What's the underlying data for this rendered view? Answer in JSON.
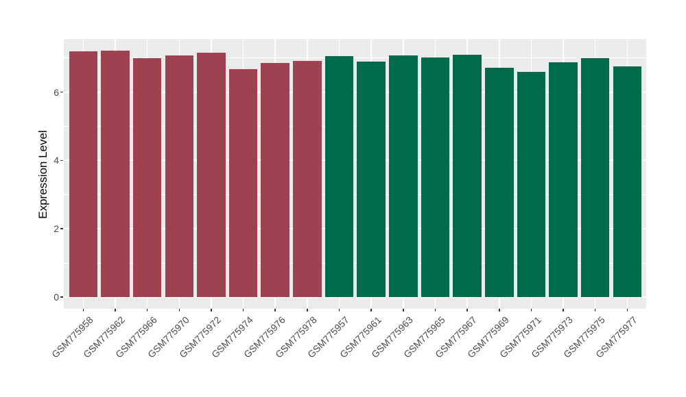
{
  "chart_data": {
    "type": "bar",
    "title": "",
    "xlabel": "",
    "ylabel": "Expression Level",
    "ylim": [
      -0.36,
      7.55
    ],
    "yticks_major": [
      0,
      2,
      4,
      6
    ],
    "yticks_minor": [
      1,
      3,
      5,
      7
    ],
    "grid": "on",
    "legend": "none",
    "panel_background": "#EBEBEB",
    "grid_color": "#FFFFFF",
    "axis_text_color": "#4D4D4D",
    "axis_title_color": "#000000",
    "tick_mark_color": "#333333",
    "groups": {
      "group1": {
        "color": "#9E4252"
      },
      "group2": {
        "color": "#006B4A"
      }
    },
    "bars": [
      {
        "sample": "GSM775958",
        "value": 7.2,
        "group": "group1"
      },
      {
        "sample": "GSM775962",
        "value": 7.22,
        "group": "group1"
      },
      {
        "sample": "GSM775966",
        "value": 6.99,
        "group": "group1"
      },
      {
        "sample": "GSM775970",
        "value": 7.07,
        "group": "group1"
      },
      {
        "sample": "GSM775972",
        "value": 7.16,
        "group": "group1"
      },
      {
        "sample": "GSM775974",
        "value": 6.67,
        "group": "group1"
      },
      {
        "sample": "GSM775976",
        "value": 6.85,
        "group": "group1"
      },
      {
        "sample": "GSM775978",
        "value": 6.92,
        "group": "group1"
      },
      {
        "sample": "GSM775957",
        "value": 7.05,
        "group": "group2"
      },
      {
        "sample": "GSM775961",
        "value": 6.9,
        "group": "group2"
      },
      {
        "sample": "GSM775963",
        "value": 7.07,
        "group": "group2"
      },
      {
        "sample": "GSM775965",
        "value": 7.01,
        "group": "group2"
      },
      {
        "sample": "GSM775967",
        "value": 7.1,
        "group": "group2"
      },
      {
        "sample": "GSM775969",
        "value": 6.72,
        "group": "group2"
      },
      {
        "sample": "GSM775971",
        "value": 6.6,
        "group": "group2"
      },
      {
        "sample": "GSM775973",
        "value": 6.88,
        "group": "group2"
      },
      {
        "sample": "GSM775975",
        "value": 7.0,
        "group": "group2"
      },
      {
        "sample": "GSM775977",
        "value": 6.76,
        "group": "group2"
      }
    ]
  }
}
